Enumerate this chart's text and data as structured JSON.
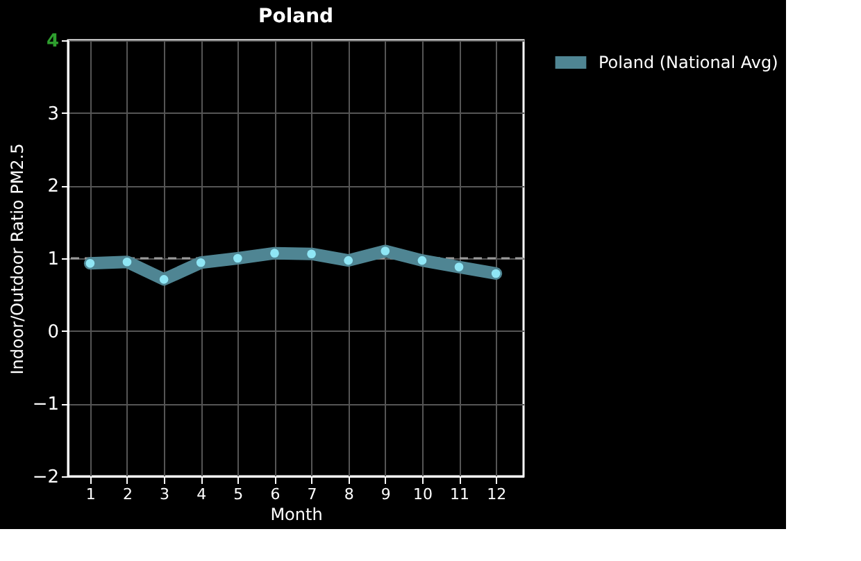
{
  "chart_data": {
    "type": "line",
    "title": "Poland",
    "xlabel": "Month",
    "ylabel": "Indoor/Outdoor Ratio PM2.5",
    "x": [
      1,
      2,
      3,
      4,
      5,
      6,
      7,
      8,
      9,
      10,
      11,
      12
    ],
    "series": [
      {
        "name": "Poland (National Avg)",
        "color": "#4f8593",
        "values": [
          0.93,
          0.95,
          0.71,
          0.94,
          1.0,
          1.07,
          1.06,
          0.97,
          1.1,
          0.97,
          0.88,
          0.79
        ]
      }
    ],
    "xlim": [
      0.4,
      12.75
    ],
    "xticks": [
      1,
      2,
      3,
      4,
      5,
      6,
      7,
      8,
      9,
      10,
      11,
      12
    ],
    "ylim": [
      -2,
      4
    ],
    "yticks": [
      -2,
      -1,
      0,
      1,
      2,
      3,
      4
    ],
    "ref_lines": [
      {
        "axis": "y",
        "value": 1,
        "color": "#999999",
        "line_style": "dashed"
      }
    ],
    "grid": true,
    "legend": "top right",
    "marker": "circle",
    "line_style": "solid"
  }
}
